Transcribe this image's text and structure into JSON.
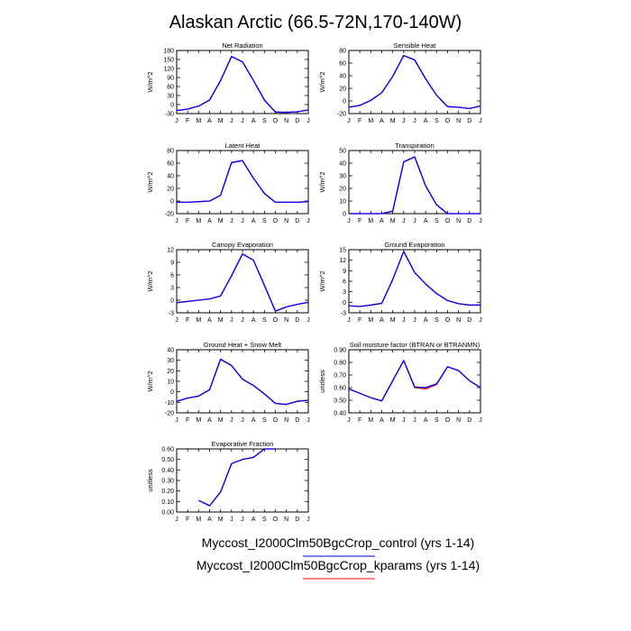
{
  "title": "Alaskan Arctic (66.5-72N,170-140W)",
  "colors": {
    "control": "#0000ff",
    "kparams": "#ff0000",
    "frame": "#000000"
  },
  "legend": [
    {
      "label": "Myccost_I2000Clm50BgcCrop_control (yrs 1-14)",
      "color": "#0000ff"
    },
    {
      "label": "Myccost_I2000Clm50BgcCrop_kparams (yrs 1-14)",
      "color": "#ff0000"
    }
  ],
  "chart_data": [
    {
      "type": "line",
      "title": "Net Radiation",
      "ylabel": "W/m^2",
      "x": [
        "J",
        "F",
        "M",
        "A",
        "M",
        "J",
        "J",
        "A",
        "S",
        "O",
        "N",
        "D",
        "J"
      ],
      "yticks": [
        180,
        150,
        120,
        90,
        60,
        30,
        0,
        -30
      ],
      "ylim": [
        -30,
        180
      ],
      "series": [
        {
          "color": "#ff0000",
          "values": [
            -20,
            -15,
            -5,
            15,
            80,
            160,
            142,
            80,
            15,
            -25,
            -26,
            -24,
            -18
          ]
        },
        {
          "color": "#0000ff",
          "values": [
            -20,
            -15,
            -5,
            15,
            80,
            160,
            142,
            80,
            15,
            -25,
            -26,
            -24,
            -18
          ]
        }
      ]
    },
    {
      "type": "line",
      "title": "Sensible Heat",
      "ylabel": "W/m^2",
      "x": [
        "J",
        "F",
        "M",
        "A",
        "M",
        "J",
        "J",
        "A",
        "S",
        "O",
        "N",
        "D",
        "J"
      ],
      "yticks": [
        80,
        60,
        40,
        20,
        0,
        -20
      ],
      "ylim": [
        -20,
        80
      ],
      "series": [
        {
          "color": "#ff0000",
          "values": [
            -10,
            -7,
            1,
            13,
            39,
            72,
            65,
            35,
            9,
            -9,
            -10,
            -12,
            -8
          ]
        },
        {
          "color": "#0000ff",
          "values": [
            -10,
            -7,
            1,
            13,
            39,
            72,
            65,
            35,
            9,
            -9,
            -10,
            -12,
            -8
          ]
        }
      ]
    },
    {
      "type": "line",
      "title": "Latent Heat",
      "ylabel": "W/m^2",
      "x": [
        "J",
        "F",
        "M",
        "A",
        "M",
        "J",
        "J",
        "A",
        "S",
        "O",
        "N",
        "D",
        "J"
      ],
      "yticks": [
        80,
        60,
        40,
        20,
        0,
        -20
      ],
      "ylim": [
        -20,
        80
      ],
      "series": [
        {
          "color": "#ff0000",
          "values": [
            -2,
            -2,
            -1,
            0,
            9,
            61,
            64,
            36,
            12,
            -2,
            -2,
            -2,
            -1
          ]
        },
        {
          "color": "#0000ff",
          "values": [
            -2,
            -2,
            -1,
            0,
            9,
            61,
            64,
            36,
            12,
            -2,
            -2,
            -2,
            -1
          ]
        }
      ]
    },
    {
      "type": "line",
      "title": "Transpiration",
      "ylabel": "W/m^2",
      "x": [
        "J",
        "F",
        "M",
        "A",
        "M",
        "J",
        "J",
        "A",
        "S",
        "O",
        "N",
        "D",
        "J"
      ],
      "yticks": [
        50,
        40,
        30,
        20,
        10,
        0
      ],
      "ylim": [
        0,
        50
      ],
      "series": [
        {
          "color": "#ff0000",
          "values": [
            0,
            0,
            0,
            0,
            2,
            41,
            45,
            22,
            7,
            0,
            0,
            0,
            0
          ]
        },
        {
          "color": "#0000ff",
          "values": [
            0,
            0,
            0,
            0,
            2,
            41,
            45,
            22,
            7,
            0,
            0,
            0,
            0
          ]
        }
      ]
    },
    {
      "type": "line",
      "title": "Canopy Evaporation",
      "ylabel": "W/m^2",
      "x": [
        "J",
        "F",
        "M",
        "A",
        "M",
        "J",
        "J",
        "A",
        "S",
        "O",
        "N",
        "D",
        "J"
      ],
      "yticks": [
        12,
        9,
        6,
        3,
        0,
        -3
      ],
      "ylim": [
        -3,
        12
      ],
      "series": [
        {
          "color": "#ff0000",
          "values": [
            -0.6,
            -0.3,
            0,
            0.3,
            1,
            5.8,
            11,
            9.5,
            3.5,
            -2.6,
            -1.6,
            -1,
            -0.5
          ]
        },
        {
          "color": "#0000ff",
          "values": [
            -0.6,
            -0.3,
            0,
            0.3,
            1,
            5.8,
            11,
            9.5,
            3.5,
            -2.6,
            -1.6,
            -1,
            -0.5
          ]
        }
      ]
    },
    {
      "type": "line",
      "title": "Ground Evaporation",
      "ylabel": "W/m^2",
      "x": [
        "J",
        "F",
        "M",
        "A",
        "M",
        "J",
        "J",
        "A",
        "S",
        "O",
        "N",
        "D",
        "J"
      ],
      "yticks": [
        15,
        12,
        9,
        6,
        3,
        0,
        -3
      ],
      "ylim": [
        -3,
        15
      ],
      "series": [
        {
          "color": "#ff0000",
          "values": [
            -1,
            -1.2,
            -0.8,
            -0.3,
            6.5,
            14.5,
            8.5,
            5.2,
            2.5,
            0.5,
            -0.4,
            -0.8,
            -0.8
          ]
        },
        {
          "color": "#0000ff",
          "values": [
            -1,
            -1.2,
            -0.8,
            -0.3,
            6.5,
            14.5,
            8.5,
            5.2,
            2.5,
            0.5,
            -0.4,
            -0.8,
            -0.8
          ]
        }
      ]
    },
    {
      "type": "line",
      "title": "Ground Heat + Snow Melt",
      "ylabel": "W/m^2",
      "x": [
        "J",
        "F",
        "M",
        "A",
        "M",
        "J",
        "J",
        "A",
        "S",
        "O",
        "N",
        "D",
        "J"
      ],
      "yticks": [
        40,
        30,
        20,
        10,
        0,
        -10,
        -20
      ],
      "ylim": [
        -20,
        40
      ],
      "series": [
        {
          "color": "#ff0000",
          "values": [
            -9,
            -6,
            -4,
            2,
            31,
            25,
            12,
            6,
            -2,
            -11,
            -12,
            -9,
            -8
          ]
        },
        {
          "color": "#0000ff",
          "values": [
            -9,
            -6,
            -4,
            2,
            31,
            25,
            12,
            6,
            -2,
            -11,
            -12,
            -9,
            -8
          ]
        }
      ]
    },
    {
      "type": "line",
      "title": "Soil moisture factor (BTRAN or BTRANMN)",
      "ylabel": "unitless",
      "x": [
        "J",
        "F",
        "M",
        "A",
        "M",
        "J",
        "J",
        "A",
        "S",
        "O",
        "N",
        "D",
        "J"
      ],
      "yticks": [
        "0.90",
        "0.80",
        "0.70",
        "0.60",
        "0.50",
        "0.40"
      ],
      "ylim": [
        0.4,
        0.9
      ],
      "series": [
        {
          "color": "#ff0000",
          "values": [
            0.59,
            0.555,
            0.52,
            0.495,
            0.655,
            0.815,
            0.6,
            0.59,
            0.625,
            0.765,
            0.735,
            0.655,
            0.6
          ]
        },
        {
          "color": "#0000ff",
          "values": [
            0.59,
            0.555,
            0.52,
            0.495,
            0.655,
            0.815,
            0.605,
            0.6,
            0.63,
            0.765,
            0.735,
            0.655,
            0.6
          ]
        }
      ]
    },
    {
      "type": "line",
      "title": "Evaporative Fraction",
      "ylabel": "unitless",
      "x": [
        "J",
        "F",
        "M",
        "A",
        "M",
        "J",
        "J",
        "A",
        "S",
        "O",
        "N",
        "D",
        "J"
      ],
      "yticks": [
        "0.60",
        "0.50",
        "0.40",
        "0.30",
        "0.20",
        "0.10",
        "0.00"
      ],
      "ylim": [
        0,
        0.6
      ],
      "series": [
        {
          "color": "#ff0000",
          "values": [
            null,
            null,
            0.11,
            0.06,
            0.19,
            0.46,
            0.5,
            0.52,
            0.6,
            0.6,
            null,
            null,
            null
          ]
        },
        {
          "color": "#0000ff",
          "values": [
            null,
            null,
            0.11,
            0.06,
            0.19,
            0.46,
            0.5,
            0.52,
            0.6,
            0.6,
            null,
            null,
            null
          ]
        }
      ]
    }
  ]
}
